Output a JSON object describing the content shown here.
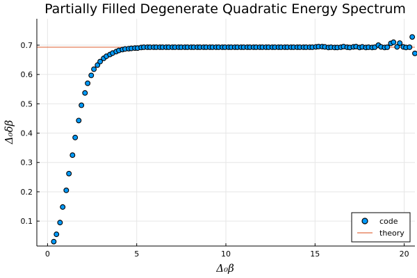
{
  "chart_data": {
    "type": "scatter",
    "title": "Partially Filled Degenerate Quadratic Energy Spectrum",
    "xlabel": "Δ₀β",
    "ylabel": "Δ₀δβ",
    "xlim": [
      -0.6,
      20.6
    ],
    "ylim": [
      0.015,
      0.79
    ],
    "xticks": [
      0,
      5,
      10,
      15,
      20
    ],
    "yticks": [
      0.1,
      0.2,
      0.3,
      0.4,
      0.5,
      0.6,
      0.7
    ],
    "ytick_labels": [
      "0.1",
      "0.2",
      "0.3",
      "0.4",
      "0.5",
      "0.6",
      "0.7"
    ],
    "grid": true,
    "legend": "bottom-right",
    "series": [
      {
        "name": "code",
        "kind": "scatter",
        "color": "#009AFA",
        "x": [
          0.35,
          0.5,
          0.7,
          0.85,
          1.05,
          1.2,
          1.4,
          1.55,
          1.75,
          1.9,
          2.1,
          2.25,
          2.45,
          2.6,
          2.8,
          2.95,
          3.15,
          3.3,
          3.5,
          3.65,
          3.85,
          4.0,
          4.2,
          4.35,
          4.55,
          4.7,
          4.9,
          5.05,
          5.25,
          5.4,
          5.6,
          5.75,
          5.95,
          6.1,
          6.3,
          6.45,
          6.65,
          6.8,
          7.0,
          7.15,
          7.35,
          7.5,
          7.7,
          7.85,
          8.05,
          8.2,
          8.4,
          8.55,
          8.75,
          8.9,
          9.1,
          9.25,
          9.45,
          9.6,
          9.8,
          9.95,
          10.15,
          10.3,
          10.5,
          10.65,
          10.85,
          11.0,
          11.2,
          11.35,
          11.55,
          11.7,
          11.9,
          12.05,
          12.25,
          12.4,
          12.6,
          12.75,
          12.95,
          13.1,
          13.3,
          13.45,
          13.65,
          13.8,
          14.0,
          14.15,
          14.35,
          14.5,
          14.7,
          14.85,
          15.05,
          15.2,
          15.4,
          15.55,
          15.75,
          15.9,
          16.1,
          16.25,
          16.45,
          16.6,
          16.8,
          16.95,
          17.15,
          17.3,
          17.5,
          17.65,
          17.85,
          18.0,
          18.2,
          18.35,
          18.55,
          18.7,
          18.9,
          19.05,
          19.25,
          19.4,
          19.6,
          19.75,
          19.95,
          20.1,
          20.3,
          20.45,
          20.6
        ],
        "y": [
          0.03,
          0.055,
          0.095,
          0.148,
          0.205,
          0.262,
          0.325,
          0.385,
          0.443,
          0.495,
          0.537,
          0.57,
          0.597,
          0.618,
          0.632,
          0.644,
          0.655,
          0.662,
          0.668,
          0.673,
          0.678,
          0.682,
          0.685,
          0.687,
          0.688,
          0.689,
          0.69,
          0.69,
          0.692,
          0.693,
          0.693,
          0.693,
          0.693,
          0.693,
          0.693,
          0.693,
          0.693,
          0.693,
          0.693,
          0.693,
          0.693,
          0.693,
          0.693,
          0.693,
          0.693,
          0.693,
          0.693,
          0.693,
          0.693,
          0.693,
          0.693,
          0.693,
          0.693,
          0.693,
          0.693,
          0.693,
          0.693,
          0.693,
          0.693,
          0.693,
          0.693,
          0.693,
          0.693,
          0.693,
          0.693,
          0.693,
          0.693,
          0.693,
          0.693,
          0.693,
          0.693,
          0.693,
          0.693,
          0.693,
          0.693,
          0.693,
          0.693,
          0.693,
          0.693,
          0.693,
          0.693,
          0.693,
          0.693,
          0.693,
          0.694,
          0.695,
          0.695,
          0.694,
          0.692,
          0.693,
          0.692,
          0.692,
          0.693,
          0.695,
          0.693,
          0.692,
          0.694,
          0.695,
          0.692,
          0.694,
          0.692,
          0.693,
          0.692,
          0.693,
          0.7,
          0.694,
          0.692,
          0.693,
          0.706,
          0.71,
          0.694,
          0.707,
          0.694,
          0.692,
          0.693,
          0.728,
          0.672
        ]
      },
      {
        "name": "theory",
        "kind": "line",
        "color": "#E26F46",
        "x": [
          -0.6,
          20.6
        ],
        "y": [
          0.693,
          0.693
        ]
      }
    ]
  }
}
